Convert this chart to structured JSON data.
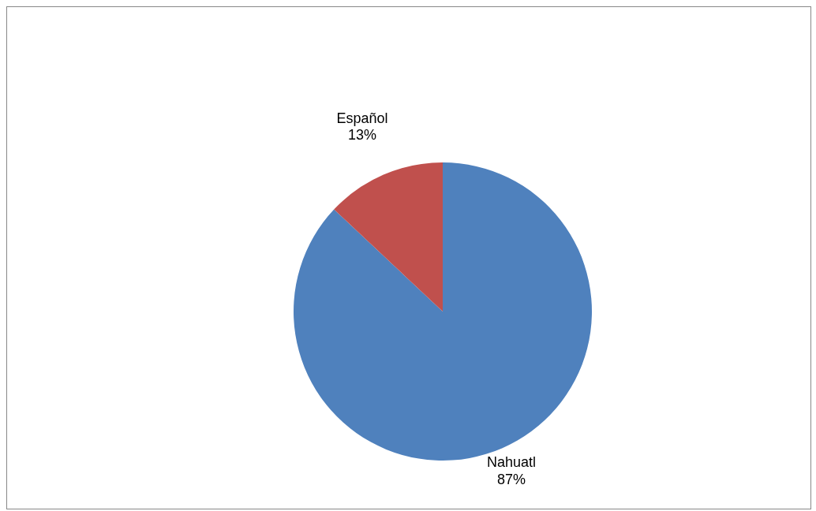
{
  "chart_data": {
    "type": "pie",
    "categories": [
      "Nahuatl",
      "Español"
    ],
    "values": [
      87,
      13
    ],
    "colors": [
      "#4f81bd",
      "#c0504d"
    ],
    "value_labels": [
      "87%",
      "13%"
    ],
    "legend": false
  }
}
